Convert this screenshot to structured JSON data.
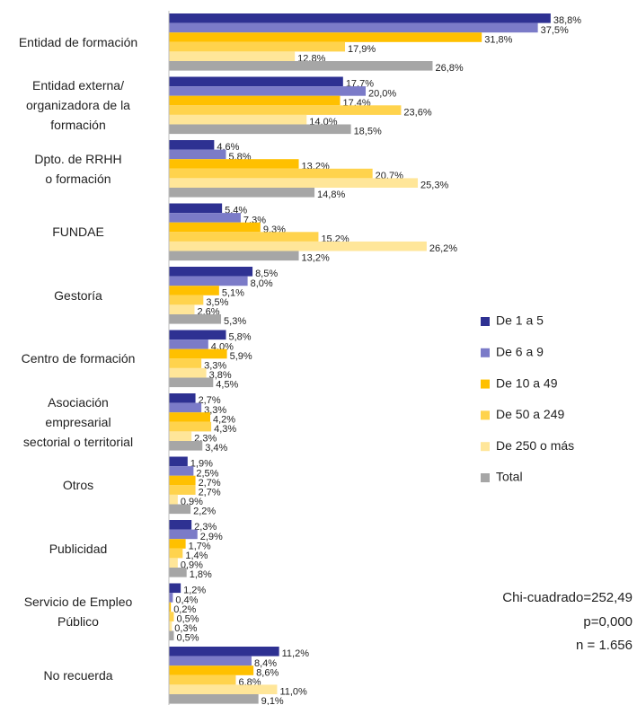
{
  "chart_data": {
    "type": "bar",
    "orientation": "horizontal",
    "categories": [
      "Entidad de formación",
      "Entidad externa/\norganizadora de la\nformación",
      "Dpto. de RRHH\no formación",
      "FUNDAE",
      "Gestoría",
      "Centro de formación",
      "Asociación\nempresarial\nsectorial o territorial",
      "Otros",
      "Publicidad",
      "Servicio de Empleo\nPúblico",
      "No recuerda"
    ],
    "xlim": [
      0,
      40
    ],
    "series": [
      {
        "name": "De 1 a 5",
        "color": "#2e3192",
        "values": [
          38.8,
          17.7,
          4.6,
          5.4,
          8.5,
          5.8,
          2.7,
          1.9,
          2.3,
          1.2,
          11.2
        ],
        "value_labels": [
          "38,8%",
          "17,7%",
          "4,6%",
          "5,4%",
          "8,5%",
          "5,8%",
          "2,7%",
          "1,9%",
          "2,3%",
          "1,2%",
          "11,2%"
        ]
      },
      {
        "name": "De 6 a 9",
        "color": "#7b7bc8",
        "values": [
          37.5,
          20.0,
          5.8,
          7.3,
          8.0,
          4.0,
          3.3,
          2.5,
          2.9,
          0.4,
          8.4
        ],
        "value_labels": [
          "37,5%",
          "20,0%",
          "5,8%",
          "7,3%",
          "8,0%",
          "4,0%",
          "3,3%",
          "2,5%",
          "2,9%",
          "0,4%",
          "8,4%"
        ]
      },
      {
        "name": "De 10 a 49",
        "color": "#ffc000",
        "values": [
          31.8,
          17.4,
          13.2,
          9.3,
          5.1,
          5.9,
          4.2,
          2.7,
          1.7,
          0.2,
          8.6
        ],
        "value_labels": [
          "31,8%",
          "17,4%",
          "13,2%",
          "9,3%",
          "5,1%",
          "5,9%",
          "4,2%",
          "2,7%",
          "1,7%",
          "0,2%",
          "8,6%"
        ]
      },
      {
        "name": "De 50 a 249",
        "color": "#ffd34d",
        "values": [
          17.9,
          23.6,
          20.7,
          15.2,
          3.5,
          3.3,
          4.3,
          2.7,
          1.4,
          0.5,
          6.8
        ],
        "value_labels": [
          "17,9%",
          "23,6%",
          "20,7%",
          "15,2%",
          "3,5%",
          "3,3%",
          "4,3%",
          "2,7%",
          "1,4%",
          "0,5%",
          "6,8%"
        ]
      },
      {
        "name": "De 250 o más",
        "color": "#ffe699",
        "values": [
          12.8,
          14.0,
          25.3,
          26.2,
          2.6,
          3.8,
          2.3,
          0.9,
          0.9,
          0.3,
          11.0
        ],
        "value_labels": [
          "12,8%",
          "14,0%",
          "25,3%",
          "26,2%",
          "2,6%",
          "3,8%",
          "2,3%",
          "0,9%",
          "0,9%",
          "0,3%",
          "11,0%"
        ]
      },
      {
        "name": "Total",
        "color": "#a6a6a6",
        "values": [
          26.8,
          18.5,
          14.8,
          13.2,
          5.3,
          4.5,
          3.4,
          2.2,
          1.8,
          0.5,
          9.1
        ],
        "value_labels": [
          "26,8%",
          "18,5%",
          "14,8%",
          "13,2%",
          "5,3%",
          "4,5%",
          "3,4%",
          "2,2%",
          "1,8%",
          "0,5%",
          "9,1%"
        ]
      }
    ],
    "legend": "right",
    "annotations": [
      "Chi-cuadrado=252,49",
      "p=0,000",
      "n = 1.656"
    ]
  }
}
